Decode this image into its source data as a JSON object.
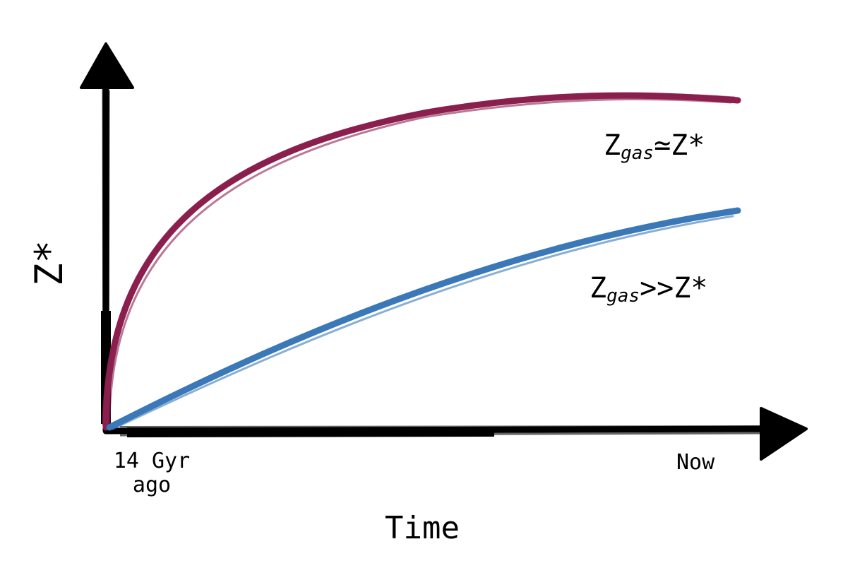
{
  "diagram": {
    "y_axis_label": "Z*",
    "x_axis_label": "Time",
    "x_tick_start_line1": "14 Gyr",
    "x_tick_start_line2": "ago",
    "x_tick_end": "Now",
    "curve_equal": {
      "label_main": "Z",
      "label_sub": "gas",
      "label_rel": "≃Z*",
      "color": "#8b1f4e",
      "shape": "fast rise, saturating"
    },
    "curve_greater": {
      "label_main": "Z",
      "label_sub": "gas",
      "label_rel": ">>Z*",
      "color": "#3a78b8",
      "shape": "slow, gradual rise"
    },
    "axis_color": "#000000",
    "style": "hand-drawn sketch"
  }
}
